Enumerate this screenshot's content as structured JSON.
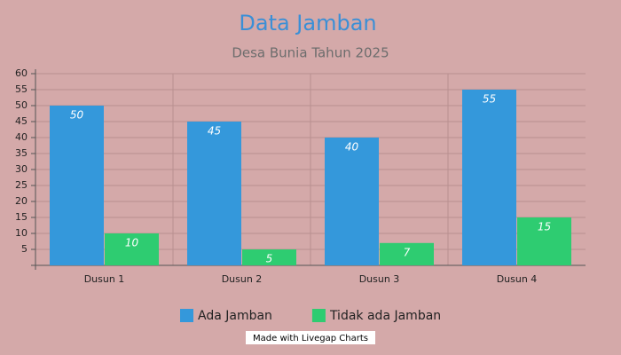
{
  "chart_data": {
    "type": "bar",
    "title": "Data Jamban",
    "subtitle": "Desa Bunia Tahun 2025",
    "categories": [
      "Dusun 1",
      "Dusun 2",
      "Dusun 3",
      "Dusun 4"
    ],
    "series": [
      {
        "name": "Ada Jamban",
        "color": "#3498db",
        "values": [
          50,
          45,
          40,
          55
        ]
      },
      {
        "name": "Tidak ada Jamban",
        "color": "#2ecc71",
        "values": [
          10,
          5,
          7,
          15
        ]
      }
    ],
    "ylim": [
      0,
      60
    ],
    "yticks": [
      5,
      10,
      15,
      20,
      25,
      30,
      35,
      40,
      45,
      50,
      55,
      60
    ],
    "grid": true,
    "legend": "bottom",
    "credit": "Made with Livegap Charts"
  }
}
